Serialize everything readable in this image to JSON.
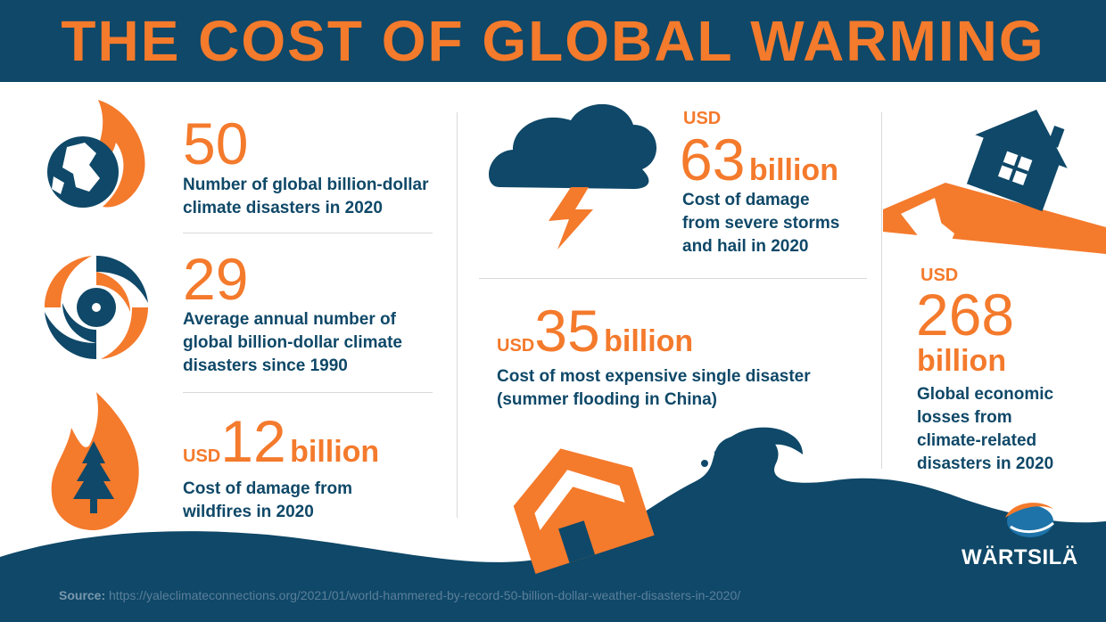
{
  "header": {
    "title": "THE COST OF GLOBAL WARMING"
  },
  "colors": {
    "navy": "#0f4868",
    "orange": "#f26c24",
    "white": "#ffffff"
  },
  "stats": [
    {
      "number": "50",
      "description_line1": "Number of global billion-dollar",
      "description_line2": "climate disasters in 2020",
      "icon": "globe-fire-icon"
    },
    {
      "number": "29",
      "description_line1": "Average annual number of",
      "description_line2": "global billion-dollar climate",
      "description_line3": "disasters since 1990",
      "icon": "hurricane-icon"
    },
    {
      "prefix": "USD",
      "number": "12",
      "suffix": "billion",
      "description_line1": "Cost of damage from",
      "description_line2": "wildfires in 2020",
      "icon": "wildfire-tree-icon"
    },
    {
      "prefix": "USD",
      "number": "63",
      "suffix": "billion",
      "description_line1": "Cost of damage",
      "description_line2": "from severe storms",
      "description_line3": "and hail in 2020",
      "icon": "storm-cloud-icon"
    },
    {
      "prefix": "USD",
      "number": "35",
      "suffix": "billion",
      "description_line1": "Cost of most expensive single disaster",
      "description_line2": "(summer flooding in China)",
      "icon": "flood-house-icon"
    },
    {
      "prefix": "USD",
      "number": "268",
      "suffix": "billion",
      "description_line1": "Global economic",
      "description_line2": "losses from",
      "description_line3": "climate-related",
      "description_line4": "disasters in 2020",
      "icon": "earthquake-house-icon"
    }
  ],
  "footer": {
    "source_label": "Source:",
    "source_url": "https://yaleclimateconnections.org/2021/01/world-hammered-by-record-50-billion-dollar-weather-disasters-in-2020/",
    "logo_text": "WÄRTSILÄ"
  }
}
